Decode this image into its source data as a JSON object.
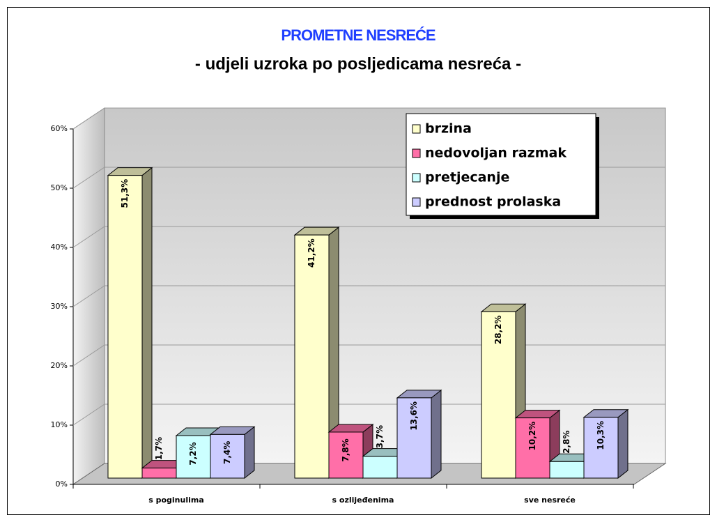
{
  "chart_data": {
    "type": "bar3d",
    "title": "PROMETNE NESREĆE",
    "subtitle": "- udjeli uzroka po posljedicama nesreća -",
    "categories": [
      "s poginulima",
      "s ozlijeđenima",
      "sve nesreće"
    ],
    "series": [
      {
        "name": "brzina",
        "color": "#ffffcc",
        "values": [
          51.3,
          41.2,
          28.2
        ],
        "value_labels": [
          "51,3%",
          "41,2%",
          "28,2%"
        ]
      },
      {
        "name": "nedovoljan razmak",
        "color": "#ff6fa8",
        "values": [
          1.7,
          7.8,
          10.2
        ],
        "value_labels": [
          "1,7%",
          "7,8%",
          "10,2%"
        ]
      },
      {
        "name": "pretjecanje",
        "color": "#ccffff",
        "values": [
          7.2,
          3.7,
          2.8
        ],
        "value_labels": [
          "7,2%",
          "3,7%",
          "2,8%"
        ]
      },
      {
        "name": "prednost prolaska",
        "color": "#ccccff",
        "values": [
          7.4,
          13.6,
          10.3
        ],
        "value_labels": [
          "7,4%",
          "13,6%",
          "10,3%"
        ]
      }
    ],
    "ylim": [
      0,
      60
    ],
    "yticks": [
      {
        "value": 0,
        "label": "0%"
      },
      {
        "value": 10,
        "label": "10%"
      },
      {
        "value": 20,
        "label": "20%"
      },
      {
        "value": 30,
        "label": "30%"
      },
      {
        "value": 40,
        "label": "40%"
      },
      {
        "value": 50,
        "label": "50%"
      },
      {
        "value": 60,
        "label": "60%"
      }
    ],
    "grid": true,
    "legend": "upper right"
  }
}
